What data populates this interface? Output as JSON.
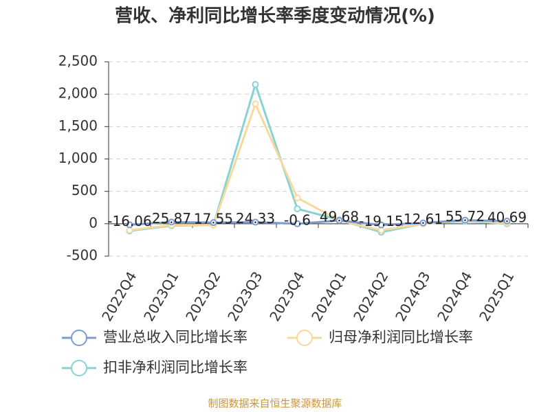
{
  "chart_data": {
    "type": "line",
    "title": "营收、净利同比增长率季度变动情况(%)",
    "source": "制图数据来自恒生聚源数据库",
    "categories": [
      "2022Q4",
      "2023Q1",
      "2023Q2",
      "2023Q3",
      "2023Q4",
      "2024Q1",
      "2024Q2",
      "2024Q3",
      "2024Q4",
      "2025Q1"
    ],
    "series": [
      {
        "name": "营业总收入同比增长率",
        "color": "#7b9ad0",
        "values": [
          -16.06,
          25.87,
          17.55,
          24.33,
          -0.6,
          49.68,
          -19.15,
          12.61,
          55.72,
          40.69
        ],
        "show_labels": true
      },
      {
        "name": "归母净利润同比增长率",
        "color": "#f9d89c",
        "values": [
          -100,
          -20,
          -20,
          1850,
          400,
          50,
          -100,
          0,
          50,
          10
        ]
      },
      {
        "name": "扣非净利润同比增长率",
        "color": "#86d3d3",
        "values": [
          -110,
          -30,
          -20,
          2150,
          230,
          60,
          -130,
          0,
          40,
          0
        ]
      }
    ],
    "ylim": [
      -500,
      2500
    ],
    "yticks": [
      -500,
      0,
      500,
      {
        "value": 1000,
        "label": "1,000"
      },
      {
        "value": 1500,
        "label": "1,500"
      },
      {
        "value": 2000,
        "label": "2,000"
      },
      {
        "value": 2500,
        "label": "2,500"
      }
    ],
    "grid": true
  }
}
